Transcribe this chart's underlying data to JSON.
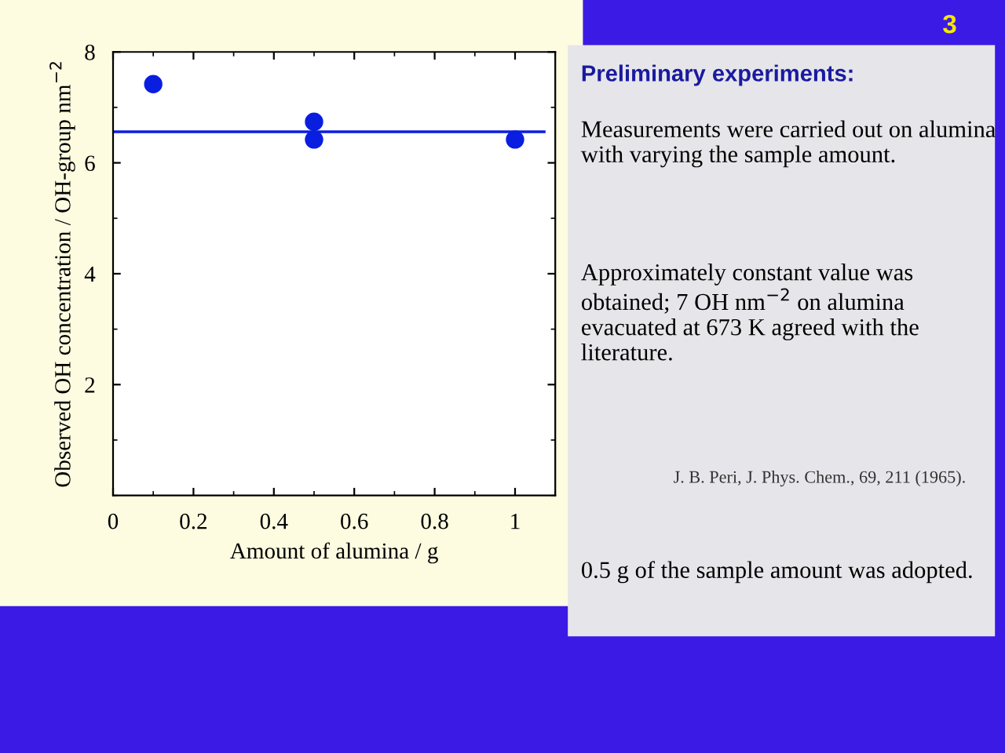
{
  "chart_data": {
    "type": "scatter",
    "xlabel": "Amount of alumina / g",
    "ylabel": "Observed OH concentration / OH-group nm$^{−2}$",
    "x": [
      0.1,
      0.5,
      0.5,
      1
    ],
    "series": [
      {
        "color": "#0a1ee0",
        "values": [
          7.42,
          6.74,
          6.42,
          6.42
        ]
      }
    ],
    "marker": "circle",
    "xlim": [
      0,
      1.1
    ],
    "ylim": [
      0,
      8
    ],
    "xticks": [
      0,
      0.2,
      0.4,
      0.6,
      0.8,
      1
    ],
    "yticks": [
      2,
      4,
      6,
      8
    ],
    "ref_lines": [
      {
        "axis": "y",
        "value": 6.56,
        "color": "#0a1ee0"
      }
    ],
    "grid": false,
    "annotations": [
      "3",
      "Preliminary experiments:",
      "Measurements were carried out on alumina with varying the sample amount.",
      "Approximately constant value was obtained; 7 OH nm$^{−2}$ on alumina evacuated at 673 K agreed with the literature.",
      "J. B. Peri, J. Phys. Chem., 69, 211 (1965).",
      "0.5 g of the sample amount was adopted."
    ]
  }
}
